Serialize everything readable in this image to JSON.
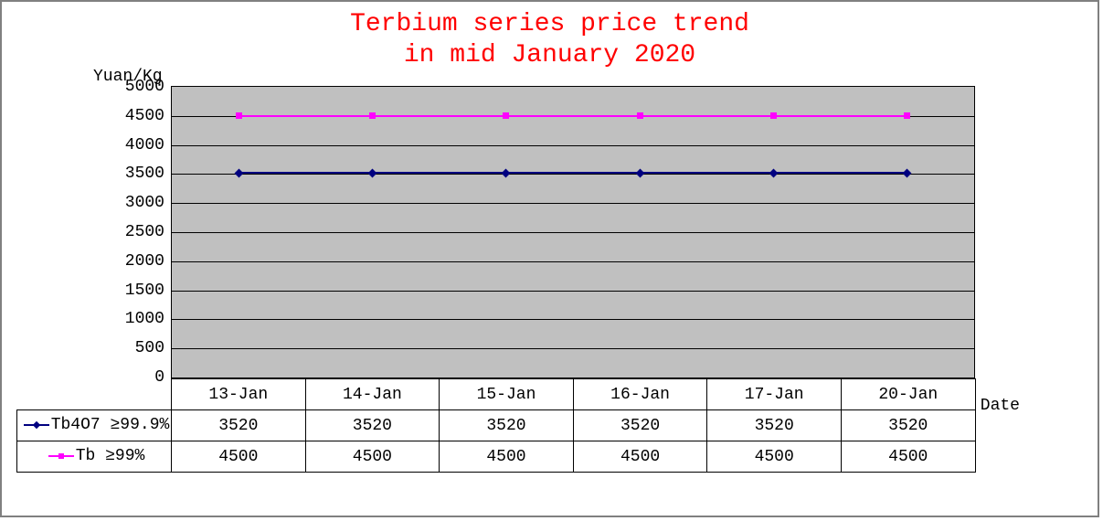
{
  "title_line1": "Terbium series price trend",
  "title_line2": "in mid January 2020",
  "y_axis_label": "Yuan/Kg",
  "x_axis_label": "Date",
  "chart": {
    "type": "line",
    "background_color": "#c0c0c0",
    "border_color": "#000000",
    "gridline_color": "#000000",
    "ylim": [
      0,
      5000
    ],
    "ytick_step": 500,
    "yticks": [
      "0",
      "500",
      "1000",
      "1500",
      "2000",
      "2500",
      "3000",
      "3500",
      "4000",
      "4500",
      "5000"
    ],
    "categories": [
      "13-Jan",
      "14-Jan",
      "15-Jan",
      "16-Jan",
      "17-Jan",
      "20-Jan"
    ],
    "series": [
      {
        "name": "Tb4O7 ≥99.9%",
        "legend_label": "Tb4O7 ≥99.9%",
        "values": [
          3520,
          3520,
          3520,
          3520,
          3520,
          3520
        ],
        "line_color": "#000080",
        "marker_style": "diamond",
        "marker_color": "#000080",
        "marker_size": 7,
        "line_width": 2
      },
      {
        "name": "Tb ≥99%",
        "legend_label": "Tb ≥99%",
        "values": [
          4500,
          4500,
          4500,
          4500,
          4500,
          4500
        ],
        "line_color": "#ff00ff",
        "marker_style": "square",
        "marker_color": "#ff00ff",
        "marker_size": 7,
        "line_width": 2
      }
    ],
    "title_color": "#ff0000",
    "title_fontsize": 28,
    "axis_fontsize": 18,
    "tick_fontsize": 18
  },
  "table": {
    "header_row": [
      "",
      "13-Jan",
      "14-Jan",
      "15-Jan",
      "16-Jan",
      "17-Jan",
      "20-Jan"
    ],
    "rows": [
      {
        "label_key": "series0",
        "cells": [
          "3520",
          "3520",
          "3520",
          "3520",
          "3520",
          "3520"
        ]
      },
      {
        "label_key": "series1",
        "cells": [
          "4500",
          "4500",
          "4500",
          "4500",
          "4500",
          "4500"
        ]
      }
    ]
  }
}
